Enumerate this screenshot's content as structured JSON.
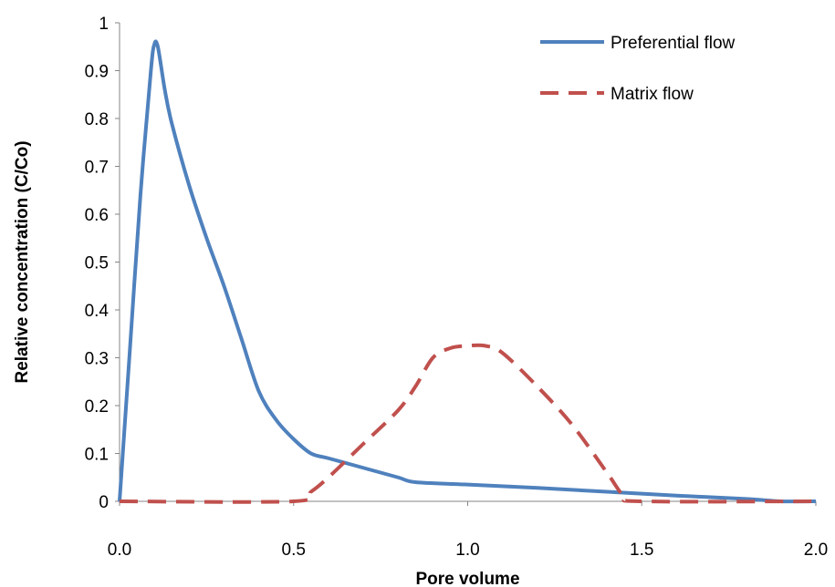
{
  "chart_data": {
    "type": "line",
    "title": "",
    "xlabel": "Pore volume",
    "ylabel": "Relative concentration (C/Co)",
    "xlim": [
      0,
      2
    ],
    "ylim": [
      0,
      1
    ],
    "x_ticks": [
      "0.0",
      "0.5",
      "1.0",
      "1.5",
      "2.0"
    ],
    "y_ticks": [
      "0",
      "0.1",
      "0.2",
      "0.3",
      "0.4",
      "0.5",
      "0.6",
      "0.7",
      "0.8",
      "0.9",
      "1"
    ],
    "grid": false,
    "legend_position": "top-right",
    "series": [
      {
        "name": "Preferential flow",
        "color": "#4F81BD",
        "style": "solid",
        "points": [
          [
            0.0,
            0.0
          ],
          [
            0.03,
            0.32
          ],
          [
            0.06,
            0.64
          ],
          [
            0.09,
            0.9
          ],
          [
            0.1,
            0.955
          ],
          [
            0.11,
            0.95
          ],
          [
            0.13,
            0.86
          ],
          [
            0.15,
            0.79
          ],
          [
            0.2,
            0.66
          ],
          [
            0.25,
            0.55
          ],
          [
            0.3,
            0.45
          ],
          [
            0.35,
            0.34
          ],
          [
            0.4,
            0.23
          ],
          [
            0.45,
            0.17
          ],
          [
            0.5,
            0.13
          ],
          [
            0.55,
            0.1
          ],
          [
            0.6,
            0.09
          ],
          [
            0.7,
            0.07
          ],
          [
            0.8,
            0.05
          ],
          [
            0.85,
            0.04
          ],
          [
            1.0,
            0.035
          ],
          [
            1.2,
            0.028
          ],
          [
            1.4,
            0.02
          ],
          [
            1.6,
            0.012
          ],
          [
            1.8,
            0.005
          ],
          [
            1.9,
            0.0
          ],
          [
            2.0,
            0.0
          ]
        ]
      },
      {
        "name": "Matrix flow",
        "color": "#C0504D",
        "style": "dashed",
        "points": [
          [
            0.0,
            0.0
          ],
          [
            0.5,
            0.0
          ],
          [
            0.55,
            0.02
          ],
          [
            0.6,
            0.05
          ],
          [
            0.7,
            0.12
          ],
          [
            0.8,
            0.19
          ],
          [
            0.85,
            0.24
          ],
          [
            0.9,
            0.3
          ],
          [
            0.95,
            0.32
          ],
          [
            1.0,
            0.325
          ],
          [
            1.05,
            0.325
          ],
          [
            1.1,
            0.31
          ],
          [
            1.2,
            0.24
          ],
          [
            1.3,
            0.16
          ],
          [
            1.4,
            0.06
          ],
          [
            1.45,
            0.01
          ],
          [
            1.5,
            0.0
          ],
          [
            2.0,
            0.0
          ]
        ]
      }
    ]
  }
}
